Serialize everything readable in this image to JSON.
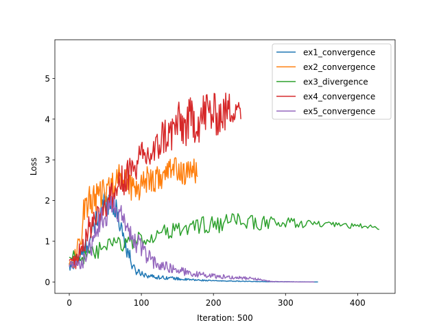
{
  "chart_data": {
    "type": "line",
    "title": "",
    "xlabel": "Iteration: 500",
    "ylabel": "Loss",
    "xlim": [
      -20,
      452
    ],
    "ylim": [
      -0.28,
      5.95
    ],
    "xticks": [
      0,
      100,
      200,
      300,
      400
    ],
    "yticks": [
      0,
      1,
      2,
      3,
      4,
      5
    ],
    "grid": false,
    "legend_position": "upper-right",
    "series": [
      {
        "name": "ex1_convergence",
        "color": "#1f77b4",
        "anchors": [
          [
            0,
            0.35
          ],
          [
            10,
            0.5
          ],
          [
            20,
            0.75
          ],
          [
            30,
            1.1
          ],
          [
            40,
            1.6
          ],
          [
            50,
            2.0
          ],
          [
            60,
            1.95
          ],
          [
            70,
            1.5
          ],
          [
            80,
            0.8
          ],
          [
            90,
            0.3
          ],
          [
            100,
            0.22
          ],
          [
            110,
            0.15
          ],
          [
            120,
            0.12
          ],
          [
            140,
            0.1
          ],
          [
            160,
            0.06
          ],
          [
            200,
            0.03
          ],
          [
            260,
            0.01
          ],
          [
            345,
            0.0
          ]
        ],
        "noise": [
          0.15,
          0.12,
          0.2,
          0.3,
          0.35,
          0.35,
          0.3,
          0.3,
          0.25,
          0.12,
          0.08,
          0.06,
          0.05,
          0.04,
          0.03,
          0.01,
          0.005,
          0.0
        ],
        "step": 1
      },
      {
        "name": "ex2_convergence",
        "color": "#ff7f0e",
        "anchors": [
          [
            0,
            0.45
          ],
          [
            10,
            0.6
          ],
          [
            15,
            1.0
          ],
          [
            20,
            1.8
          ],
          [
            30,
            2.0
          ],
          [
            40,
            2.1
          ],
          [
            50,
            2.2
          ],
          [
            60,
            2.4
          ],
          [
            70,
            2.6
          ],
          [
            80,
            2.5
          ],
          [
            90,
            2.3
          ],
          [
            100,
            2.4
          ],
          [
            110,
            2.6
          ],
          [
            120,
            2.5
          ],
          [
            130,
            2.6
          ],
          [
            140,
            2.75
          ],
          [
            150,
            2.8
          ],
          [
            160,
            2.6
          ],
          [
            170,
            2.8
          ],
          [
            178,
            2.6
          ]
        ],
        "noise": [
          0.05,
          0.3,
          0.4,
          0.4,
          0.4,
          0.35,
          0.35,
          0.35,
          0.35,
          0.35,
          0.4,
          0.4,
          0.4,
          0.35,
          0.3,
          0.3,
          0.3,
          0.3,
          0.3,
          0.3
        ],
        "step": 1
      },
      {
        "name": "ex3_divergence",
        "color": "#2ca02c",
        "anchors": [
          [
            0,
            0.62
          ],
          [
            10,
            0.7
          ],
          [
            20,
            0.6
          ],
          [
            30,
            0.65
          ],
          [
            40,
            0.75
          ],
          [
            50,
            0.85
          ],
          [
            60,
            0.9
          ],
          [
            70,
            0.95
          ],
          [
            80,
            0.95
          ],
          [
            90,
            1.0
          ],
          [
            100,
            1.05
          ],
          [
            120,
            1.15
          ],
          [
            140,
            1.25
          ],
          [
            160,
            1.3
          ],
          [
            180,
            1.4
          ],
          [
            200,
            1.4
          ],
          [
            220,
            1.45
          ],
          [
            240,
            1.5
          ],
          [
            260,
            1.45
          ],
          [
            280,
            1.45
          ],
          [
            300,
            1.45
          ],
          [
            320,
            1.45
          ],
          [
            340,
            1.42
          ],
          [
            360,
            1.4
          ],
          [
            380,
            1.38
          ],
          [
            400,
            1.38
          ],
          [
            420,
            1.35
          ],
          [
            430,
            1.33
          ]
        ],
        "noise": [
          0.1,
          0.2,
          0.2,
          0.2,
          0.22,
          0.22,
          0.22,
          0.22,
          0.22,
          0.2,
          0.2,
          0.2,
          0.2,
          0.2,
          0.22,
          0.22,
          0.22,
          0.2,
          0.18,
          0.16,
          0.14,
          0.12,
          0.1,
          0.08,
          0.07,
          0.06,
          0.05,
          0.04
        ],
        "step": 2
      },
      {
        "name": "ex4_convergence",
        "color": "#d62728",
        "anchors": [
          [
            0,
            0.5
          ],
          [
            10,
            0.55
          ],
          [
            20,
            1.0
          ],
          [
            30,
            1.4
          ],
          [
            40,
            1.7
          ],
          [
            50,
            1.9
          ],
          [
            60,
            2.1
          ],
          [
            70,
            2.4
          ],
          [
            80,
            2.6
          ],
          [
            90,
            2.8
          ],
          [
            100,
            3.0
          ],
          [
            110,
            3.1
          ],
          [
            120,
            3.2
          ],
          [
            130,
            3.6
          ],
          [
            140,
            3.6
          ],
          [
            150,
            3.9
          ],
          [
            160,
            3.8
          ],
          [
            170,
            4.0
          ],
          [
            180,
            3.95
          ],
          [
            190,
            4.2
          ],
          [
            200,
            4.1
          ],
          [
            210,
            4.1
          ],
          [
            220,
            4.2
          ],
          [
            230,
            4.3
          ],
          [
            236,
            4.4
          ],
          [
            238,
            4.0
          ]
        ],
        "noise": [
          0.05,
          0.25,
          0.3,
          0.35,
          0.35,
          0.35,
          0.4,
          0.4,
          0.4,
          0.45,
          0.45,
          0.45,
          0.45,
          0.5,
          0.5,
          0.55,
          0.55,
          0.6,
          0.55,
          0.6,
          0.55,
          0.5,
          0.5,
          0.35,
          0.2,
          0.0
        ],
        "step": 1
      },
      {
        "name": "ex5_convergence",
        "color": "#9467bd",
        "anchors": [
          [
            0,
            0.45
          ],
          [
            10,
            0.4
          ],
          [
            20,
            0.5
          ],
          [
            30,
            0.9
          ],
          [
            40,
            1.4
          ],
          [
            50,
            1.7
          ],
          [
            60,
            1.8
          ],
          [
            70,
            1.7
          ],
          [
            80,
            1.3
          ],
          [
            90,
            1.0
          ],
          [
            100,
            0.85
          ],
          [
            110,
            0.6
          ],
          [
            120,
            0.45
          ],
          [
            140,
            0.35
          ],
          [
            160,
            0.25
          ],
          [
            180,
            0.18
          ],
          [
            200,
            0.15
          ],
          [
            220,
            0.12
          ],
          [
            240,
            0.1
          ],
          [
            260,
            0.07
          ],
          [
            280,
            0.01
          ],
          [
            320,
            0.0
          ],
          [
            340,
            0.0
          ]
        ],
        "noise": [
          0.08,
          0.12,
          0.2,
          0.3,
          0.35,
          0.35,
          0.35,
          0.3,
          0.3,
          0.3,
          0.25,
          0.2,
          0.15,
          0.12,
          0.1,
          0.07,
          0.06,
          0.05,
          0.04,
          0.03,
          0.01,
          0.0,
          0.0
        ],
        "step": 1
      }
    ]
  }
}
